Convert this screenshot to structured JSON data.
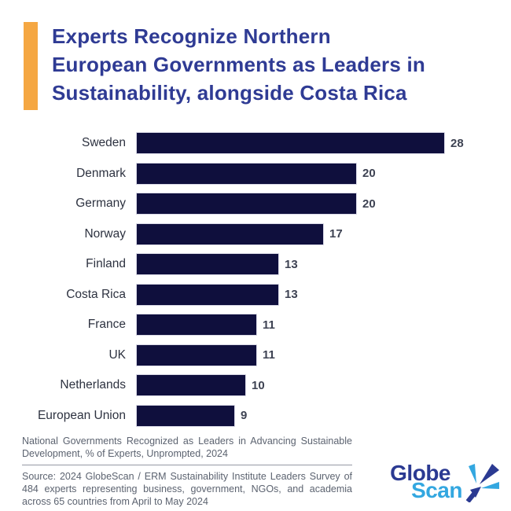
{
  "colors": {
    "accent_orange": "#F5A742",
    "title_blue": "#2F3B94",
    "bar_navy": "#0F0F3D",
    "value_label": "#3E4353",
    "footer_gray": "#5C6370",
    "logo_dark_blue": "#2B3A92",
    "logo_light_blue": "#33A7E0"
  },
  "title": {
    "lines": [
      "Experts Recognize Northern",
      "European Governments as Leaders in",
      "Sustainability, alongside Costa Rica"
    ]
  },
  "chart_data": {
    "type": "bar",
    "orientation": "horizontal",
    "categories": [
      "Sweden",
      "Denmark",
      "Germany",
      "Norway",
      "Finland",
      "Costa Rica",
      "France",
      "UK",
      "Netherlands",
      "European Union"
    ],
    "values": [
      28,
      20,
      20,
      17,
      13,
      13,
      11,
      11,
      10,
      9
    ],
    "xlim": [
      0,
      28
    ],
    "grid": false,
    "data_labels": true,
    "legend": "none",
    "title": "National Governments Recognized as Leaders in Advancing Sustainable Development, % of Experts, Unprompted, 2024",
    "xlabel": "",
    "ylabel": ""
  },
  "footer": {
    "caption": "National Governments Recognized as Leaders in Advancing Sustainable Development, % of Experts, Unprompted, 2024",
    "source": "Source: 2024 GlobeScan / ERM Sustainability Institute Leaders Survey of 484 experts representing business, government, NGOs, and academia across 65 countries from April to May 2024"
  },
  "logo": {
    "word_top": "Globe",
    "word_bottom": "Scan"
  }
}
